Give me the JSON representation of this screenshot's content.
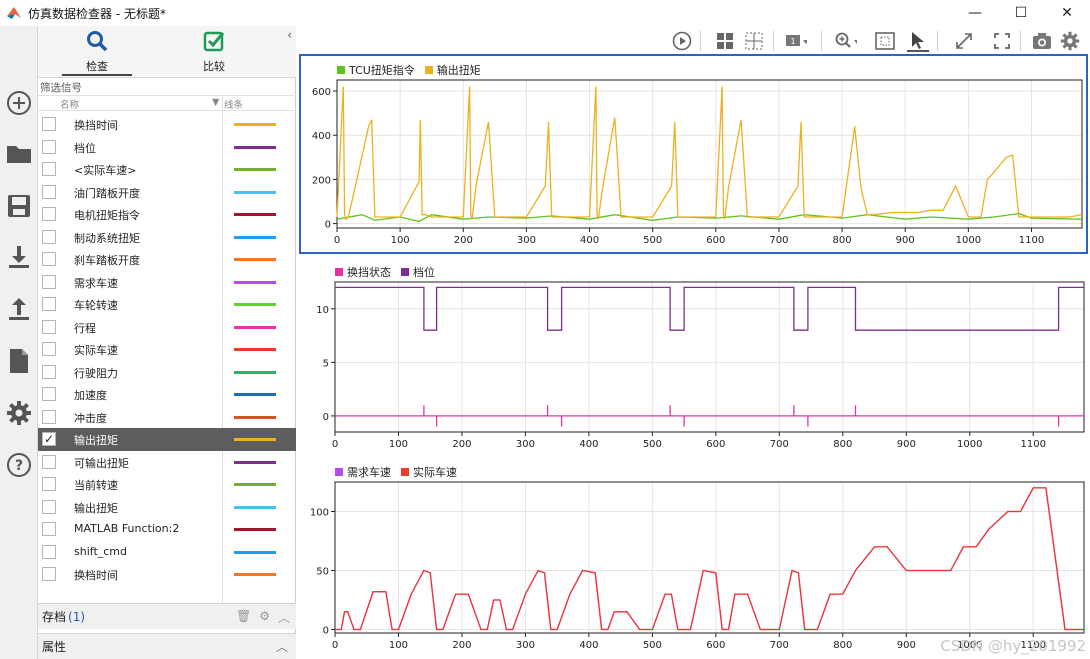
{
  "window": {
    "title": "仿真数据检查器 - 无标题*",
    "controls": [
      "—",
      "☐",
      "✕"
    ]
  },
  "rail": {
    "icons": [
      "new-icon",
      "folder-icon",
      "save-icon",
      "download-icon",
      "upload-icon",
      "document-icon",
      "gear-icon",
      "help-icon"
    ]
  },
  "panel": {
    "tabs": [
      {
        "label": "检查",
        "icon": "search-icon",
        "active": true
      },
      {
        "label": "比较",
        "icon": "checkmark-icon",
        "active": false
      }
    ],
    "filter_label": "筛选信号",
    "col_name": "名称",
    "col_line": "线条",
    "signals": [
      {
        "name": "换挡时间",
        "color": "#edb120",
        "checked": false
      },
      {
        "name": "档位",
        "color": "#7e2f8e",
        "checked": false
      },
      {
        "name": "<实际车速>",
        "color": "#77ac30",
        "checked": false
      },
      {
        "name": "油门踏板开度",
        "color": "#4dbeee",
        "checked": false
      },
      {
        "name": "电机扭矩指令",
        "color": "#a2142f",
        "checked": false
      },
      {
        "name": "制动系统扭矩",
        "color": "#1ea0e8",
        "checked": false
      },
      {
        "name": "刹车踏板开度",
        "color": "#f3742a",
        "checked": false
      },
      {
        "name": "需求车速",
        "color": "#b64be8",
        "checked": false
      },
      {
        "name": "车轮转速",
        "color": "#62d230",
        "checked": false
      },
      {
        "name": "行程",
        "color": "#ec2fa6",
        "checked": false
      },
      {
        "name": "实际车速",
        "color": "#f0382b",
        "checked": false
      },
      {
        "name": "行驶阻力",
        "color": "#2ab468",
        "checked": false
      },
      {
        "name": "加速度",
        "color": "#1f6fb0",
        "checked": false
      },
      {
        "name": "冲击度",
        "color": "#d45426",
        "checked": false
      },
      {
        "name": "输出扭矩",
        "color": "#edb120",
        "checked": true,
        "selected": true
      },
      {
        "name": "可输出扭矩",
        "color": "#7e2f8e",
        "checked": false
      },
      {
        "name": "当前转速",
        "color": "#77ac30",
        "checked": false
      },
      {
        "name": "输出扭矩",
        "color": "#4dbeee",
        "checked": false
      },
      {
        "name": "MATLAB Function:2",
        "color": "#a2142f",
        "checked": false
      },
      {
        "name": "shift_cmd",
        "color": "#1ea0e8",
        "checked": false
      },
      {
        "name": "换档时间",
        "color": "#f3742a",
        "checked": false
      }
    ],
    "archive_label": "存档",
    "archive_count": "(1)",
    "properties_label": "属性"
  },
  "toolbar": {
    "icons": [
      "play-icon",
      "layout-icon",
      "grid-icon",
      "cursor-icon",
      "zoom-icon",
      "fit-icon",
      "pointer-icon",
      "expand-icon",
      "fullscreen-icon",
      "camera-icon",
      "settings-icon"
    ]
  },
  "watermark": "CSDN @hy_201992",
  "chart_data": [
    {
      "type": "line",
      "legend": [
        "TCU扭矩指令",
        "输出扭矩"
      ],
      "colors": [
        "#5fc41b",
        "#edb120"
      ],
      "xlim": [
        0,
        1180
      ],
      "ylim": [
        -20,
        650
      ],
      "xticks": [
        0,
        100,
        200,
        300,
        400,
        500,
        600,
        700,
        800,
        900,
        1000,
        1100
      ],
      "yticks": [
        0,
        200,
        400,
        600
      ],
      "series": [
        {
          "name": "TCU扭矩指令",
          "x": [
            0,
            40,
            60,
            100,
            130,
            150,
            200,
            240,
            300,
            340,
            400,
            440,
            500,
            540,
            600,
            640,
            700,
            740,
            800,
            840,
            900,
            940,
            1000,
            1040,
            1080,
            1100,
            1180
          ],
          "y": [
            20,
            40,
            15,
            30,
            10,
            40,
            20,
            30,
            25,
            35,
            20,
            40,
            15,
            30,
            25,
            35,
            20,
            40,
            25,
            40,
            20,
            30,
            20,
            30,
            45,
            25,
            20
          ]
        },
        {
          "name": "输出扭矩",
          "x": [
            0,
            10,
            12,
            14,
            18,
            30,
            50,
            55,
            60,
            70,
            100,
            130,
            132,
            135,
            140,
            150,
            180,
            200,
            210,
            212,
            214,
            220,
            240,
            250,
            300,
            330,
            335,
            340,
            350,
            380,
            400,
            410,
            412,
            414,
            420,
            440,
            450,
            500,
            530,
            535,
            540,
            550,
            580,
            600,
            610,
            612,
            614,
            620,
            640,
            650,
            700,
            730,
            735,
            740,
            750,
            780,
            800,
            820,
            830,
            835,
            840,
            850,
            880,
            900,
            920,
            940,
            960,
            980,
            1000,
            1020,
            1030,
            1040,
            1060,
            1070,
            1080,
            1100,
            1140,
            1160,
            1180
          ],
          "y": [
            30,
            620,
            40,
            20,
            30,
            180,
            440,
            470,
            30,
            30,
            30,
            190,
            470,
            40,
            40,
            30,
            30,
            30,
            620,
            40,
            20,
            170,
            460,
            30,
            30,
            170,
            460,
            30,
            30,
            30,
            30,
            620,
            40,
            20,
            150,
            480,
            30,
            30,
            170,
            460,
            30,
            30,
            30,
            30,
            620,
            40,
            20,
            160,
            470,
            30,
            30,
            170,
            460,
            30,
            30,
            30,
            30,
            440,
            160,
            100,
            40,
            40,
            50,
            50,
            50,
            60,
            60,
            170,
            30,
            30,
            200,
            230,
            300,
            310,
            30,
            30,
            30,
            30,
            40
          ]
        }
      ]
    },
    {
      "type": "line",
      "legend": [
        "换挡状态",
        "档位"
      ],
      "colors": [
        "#ec2fa6",
        "#7e2f8e"
      ],
      "xlim": [
        0,
        1180
      ],
      "ylim": [
        -1.5,
        12.5
      ],
      "xticks": [
        0,
        100,
        200,
        300,
        400,
        500,
        600,
        700,
        800,
        900,
        1000,
        1100
      ],
      "yticks": [
        0,
        5,
        10
      ],
      "series": [
        {
          "name": "换挡状态",
          "x": [
            0,
            140,
            140,
            140,
            160,
            160,
            160,
            335,
            335,
            335,
            357,
            357,
            357,
            528,
            528,
            528,
            550,
            550,
            550,
            723,
            723,
            723,
            745,
            745,
            745,
            820,
            820,
            820,
            1140,
            1140,
            1140,
            1180
          ],
          "y": [
            0,
            0,
            1,
            0,
            0,
            -1,
            0,
            0,
            1,
            0,
            0,
            -1,
            0,
            0,
            1,
            0,
            0,
            -1,
            0,
            0,
            1,
            0,
            0,
            -1,
            0,
            0,
            1,
            0,
            0,
            -1,
            0,
            0
          ]
        },
        {
          "name": "档位",
          "x": [
            0,
            140,
            140,
            160,
            160,
            335,
            335,
            357,
            357,
            528,
            528,
            550,
            550,
            723,
            723,
            745,
            745,
            820,
            820,
            1140,
            1140,
            1180
          ],
          "y": [
            12,
            12,
            8,
            8,
            12,
            12,
            8,
            8,
            12,
            12,
            8,
            8,
            12,
            12,
            8,
            8,
            12,
            12,
            8,
            8,
            12,
            12
          ]
        }
      ]
    },
    {
      "type": "line",
      "legend": [
        "需求车速",
        "实际车速"
      ],
      "colors": [
        "#b64be8",
        "#f0382b"
      ],
      "xlim": [
        0,
        1180
      ],
      "ylim": [
        -3,
        125
      ],
      "xticks": [
        0,
        100,
        200,
        300,
        400,
        500,
        600,
        700,
        800,
        900,
        1000,
        1100
      ],
      "yticks": [
        0,
        50,
        100
      ],
      "series": [
        {
          "name": "需求车速",
          "x": [
            0,
            10,
            15,
            20,
            30,
            40,
            60,
            80,
            90,
            100,
            120,
            140,
            150,
            160,
            170,
            190,
            210,
            230,
            240,
            250,
            260,
            270,
            280,
            300,
            320,
            330,
            340,
            350,
            370,
            390,
            410,
            420,
            430,
            440,
            460,
            480,
            500,
            520,
            530,
            540,
            560,
            580,
            600,
            610,
            620,
            630,
            650,
            670,
            700,
            720,
            730,
            740,
            760,
            780,
            800,
            820,
            850,
            870,
            900,
            910,
            950,
            970,
            990,
            1000,
            1010,
            1030,
            1060,
            1080,
            1100,
            1120,
            1150,
            1160,
            1180
          ],
          "y": [
            0,
            0,
            15,
            15,
            0,
            0,
            32,
            32,
            0,
            0,
            30,
            50,
            48,
            0,
            0,
            30,
            30,
            0,
            0,
            25,
            25,
            0,
            0,
            30,
            50,
            48,
            0,
            0,
            30,
            50,
            48,
            0,
            0,
            15,
            15,
            0,
            0,
            30,
            30,
            0,
            0,
            50,
            48,
            0,
            0,
            30,
            30,
            0,
            0,
            50,
            48,
            0,
            0,
            30,
            30,
            50,
            70,
            70,
            50,
            50,
            50,
            50,
            70,
            70,
            70,
            85,
            100,
            100,
            120,
            120,
            0,
            0,
            0
          ]
        },
        {
          "name": "实际车速",
          "x": [
            0,
            10,
            15,
            20,
            30,
            40,
            60,
            80,
            90,
            100,
            120,
            140,
            150,
            160,
            170,
            190,
            210,
            230,
            240,
            250,
            260,
            270,
            280,
            300,
            320,
            330,
            340,
            350,
            370,
            390,
            410,
            420,
            430,
            440,
            460,
            480,
            500,
            520,
            530,
            540,
            560,
            580,
            600,
            610,
            620,
            630,
            650,
            670,
            700,
            720,
            730,
            740,
            760,
            780,
            800,
            820,
            850,
            870,
            900,
            910,
            950,
            970,
            990,
            1000,
            1010,
            1030,
            1060,
            1080,
            1100,
            1120,
            1150,
            1160,
            1180
          ],
          "y": [
            0,
            0,
            15,
            15,
            0,
            0,
            32,
            32,
            0,
            0,
            30,
            50,
            48,
            0,
            0,
            30,
            30,
            0,
            0,
            25,
            25,
            0,
            0,
            30,
            50,
            48,
            0,
            0,
            30,
            50,
            48,
            0,
            0,
            15,
            15,
            0,
            0,
            30,
            30,
            0,
            0,
            50,
            48,
            0,
            0,
            30,
            30,
            0,
            0,
            50,
            48,
            0,
            0,
            30,
            30,
            50,
            70,
            70,
            50,
            50,
            50,
            50,
            70,
            70,
            70,
            85,
            100,
            100,
            120,
            120,
            0,
            0,
            0
          ]
        }
      ]
    }
  ]
}
